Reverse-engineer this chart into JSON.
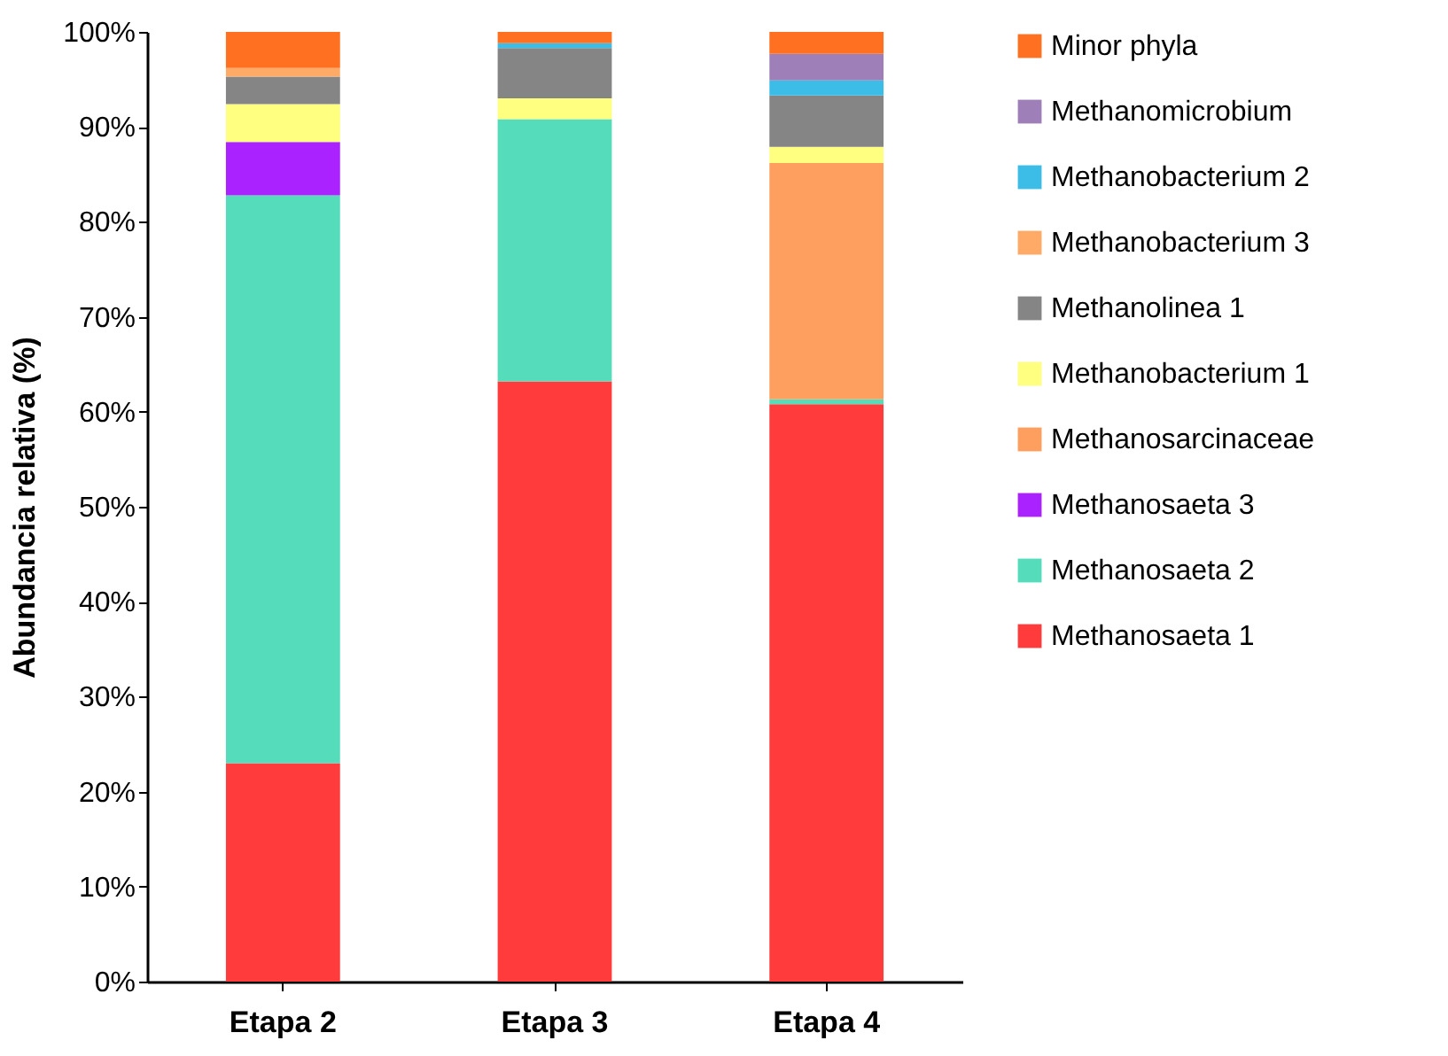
{
  "chart_data": {
    "type": "bar",
    "stacked": true,
    "ylabel": "Abundancia relativa (%)",
    "categories": [
      "Etapa 2",
      "Etapa 3",
      "Etapa 4"
    ],
    "series": [
      {
        "name": "Methanosaeta 1",
        "color": "#ff3b3b",
        "values": [
          23.0,
          63.2,
          60.8
        ]
      },
      {
        "name": "Methanosaeta 2",
        "color": "#55ddbb",
        "values": [
          59.8,
          27.6,
          0.5
        ]
      },
      {
        "name": "Methanosaeta 3",
        "color": "#aa22ff",
        "values": [
          5.6,
          null,
          null
        ]
      },
      {
        "name": "Methanosarcinaceae",
        "color": "#ff9f5f",
        "values": [
          null,
          null,
          24.9
        ]
      },
      {
        "name": "Methanobacterium 1",
        "color": "#ffff80",
        "values": [
          4.0,
          2.2,
          1.7
        ]
      },
      {
        "name": "Methanolinea 1",
        "color": "#858585",
        "values": [
          2.9,
          5.3,
          5.4
        ]
      },
      {
        "name": "Methanobacterium 3",
        "color": "#ffaa66",
        "values": [
          0.9,
          null,
          null
        ]
      },
      {
        "name": "Methanobacterium 2",
        "color": "#3cbde8",
        "values": [
          null,
          0.5,
          1.6
        ]
      },
      {
        "name": "Methanomicrobium",
        "color": "#9e7fb8",
        "values": [
          null,
          null,
          2.8
        ]
      },
      {
        "name": "Minor phyla",
        "color": "#ff7020",
        "values": [
          3.8,
          1.2,
          2.3
        ]
      }
    ],
    "ylim": [
      0,
      100
    ],
    "yticks": [
      {
        "value": 0,
        "label": "0%"
      },
      {
        "value": 10,
        "label": "10%"
      },
      {
        "value": 20,
        "label": "20%"
      },
      {
        "value": 30,
        "label": "30%"
      },
      {
        "value": 40,
        "label": "40%"
      },
      {
        "value": 50,
        "label": "50%"
      },
      {
        "value": 60,
        "label": "60%"
      },
      {
        "value": 70,
        "label": "70%"
      },
      {
        "value": 80,
        "label": "80%"
      },
      {
        "value": 90,
        "label": "90%"
      },
      {
        "value": 100,
        "label": "100%"
      }
    ],
    "grid": false,
    "legend": "right"
  }
}
